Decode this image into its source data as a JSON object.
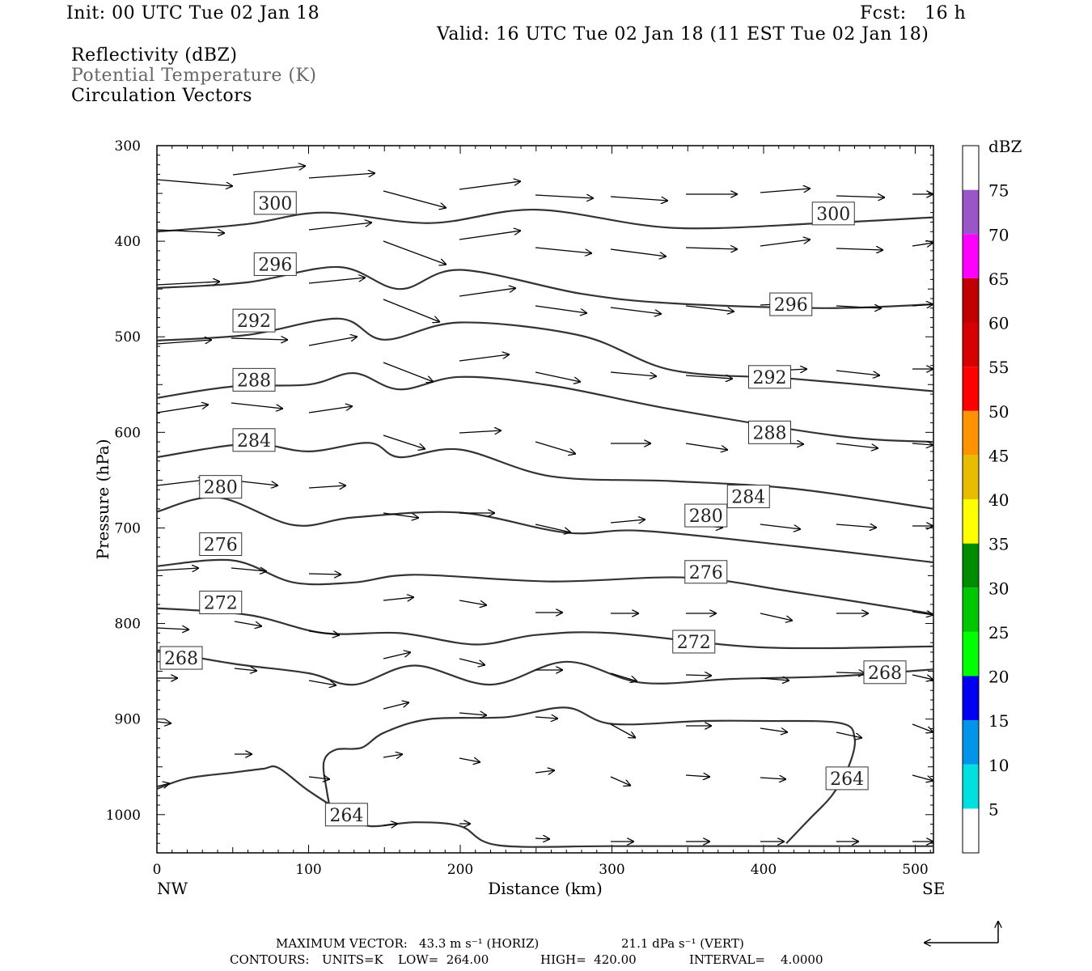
{
  "header": {
    "init": "Init: 00 UTC Tue 02 Jan 18",
    "fcst": "Fcst:   16 h",
    "valid": "Valid: 16 UTC Tue 02 Jan 18 (11 EST Tue 02 Jan 18)"
  },
  "fields": {
    "reflectivity": "Reflectivity (dBZ)",
    "theta": "Potential Temperature (K)",
    "vectors": "Circulation Vectors"
  },
  "footer": {
    "max_vector_label": "MAXIMUM VECTOR:",
    "max_vector_horiz": "43.3 m s⁻¹ (HORIZ)",
    "max_vector_vert": "21.1 dPa s⁻¹ (VERT)",
    "contours_label": "CONTOURS:",
    "units": "UNITS=K",
    "low": "LOW=  264.00",
    "high": "HIGH=  420.00",
    "interval": "INTERVAL=    4.0000"
  },
  "colorbar": {
    "title": "dBZ",
    "ticks": [
      "5",
      "10",
      "15",
      "20",
      "25",
      "30",
      "35",
      "40",
      "45",
      "50",
      "55",
      "60",
      "65",
      "70",
      "75"
    ],
    "colors": [
      "#ffffff",
      "#00e0e0",
      "#0095e8",
      "#0000f0",
      "#00ff00",
      "#00c800",
      "#008c00",
      "#ffff00",
      "#e6bd00",
      "#ff9200",
      "#ff0000",
      "#d60000",
      "#c00000",
      "#ff00ff",
      "#9a55c8",
      "#ffffff"
    ]
  },
  "chart_data": {
    "type": "contour",
    "xlabel": "Distance (km)",
    "ylabel": "Pressure (hPa)",
    "xlim": [
      0,
      512
    ],
    "ylim": [
      1040,
      300
    ],
    "x_ticks": [
      "0",
      "100",
      "200",
      "300",
      "400",
      "500"
    ],
    "y_ticks": [
      "300",
      "400",
      "500",
      "600",
      "700",
      "800",
      "900",
      "1000"
    ],
    "x_end_labels": {
      "left": "NW",
      "right": "SE"
    },
    "contour_interval_K": 4,
    "isentropes": [
      {
        "theta": 268,
        "labels": [
          [
            16,
            836
          ],
          [
            480,
            851
          ]
        ],
        "points": [
          [
            0,
            828
          ],
          [
            50,
            842
          ],
          [
            100,
            852
          ],
          [
            130,
            864
          ],
          [
            170,
            844
          ],
          [
            220,
            864
          ],
          [
            270,
            840
          ],
          [
            320,
            862
          ],
          [
            380,
            858
          ],
          [
            450,
            855
          ],
          [
            512,
            848
          ]
        ]
      },
      {
        "theta": 272,
        "labels": [
          [
            42,
            778
          ],
          [
            354,
            819
          ]
        ],
        "points": [
          [
            0,
            784
          ],
          [
            60,
            791
          ],
          [
            110,
            810
          ],
          [
            160,
            810
          ],
          [
            210,
            822
          ],
          [
            250,
            812
          ],
          [
            300,
            810
          ],
          [
            400,
            825
          ],
          [
            512,
            824
          ]
        ]
      },
      {
        "theta": 276,
        "labels": [
          [
            42,
            717
          ],
          [
            362,
            746
          ]
        ],
        "points": [
          [
            0,
            740
          ],
          [
            50,
            734
          ],
          [
            90,
            757
          ],
          [
            130,
            757
          ],
          [
            170,
            749
          ],
          [
            260,
            756
          ],
          [
            350,
            752
          ],
          [
            420,
            767
          ],
          [
            512,
            790
          ]
        ]
      },
      {
        "theta": 280,
        "labels": [
          [
            42,
            657
          ],
          [
            362,
            687
          ]
        ],
        "points": [
          [
            0,
            683
          ],
          [
            40,
            668
          ],
          [
            90,
            697
          ],
          [
            130,
            689
          ],
          [
            200,
            684
          ],
          [
            270,
            705
          ],
          [
            320,
            703
          ],
          [
            420,
            719
          ],
          [
            512,
            736
          ]
        ]
      },
      {
        "theta": 284,
        "labels": [
          [
            64,
            608
          ],
          [
            390,
            667
          ]
        ],
        "points": [
          [
            0,
            626
          ],
          [
            60,
            612
          ],
          [
            100,
            620
          ],
          [
            140,
            611
          ],
          [
            160,
            626
          ],
          [
            200,
            618
          ],
          [
            260,
            646
          ],
          [
            340,
            651
          ],
          [
            420,
            659
          ],
          [
            512,
            680
          ]
        ]
      },
      {
        "theta": 288,
        "labels": [
          [
            64,
            545
          ],
          [
            404,
            600
          ]
        ],
        "points": [
          [
            0,
            564
          ],
          [
            50,
            552
          ],
          [
            100,
            550
          ],
          [
            130,
            538
          ],
          [
            160,
            555
          ],
          [
            200,
            542
          ],
          [
            260,
            551
          ],
          [
            340,
            576
          ],
          [
            450,
            604
          ],
          [
            512,
            610
          ]
        ]
      },
      {
        "theta": 292,
        "labels": [
          [
            64,
            483
          ],
          [
            404,
            542
          ]
        ],
        "points": [
          [
            0,
            504
          ],
          [
            60,
            498
          ],
          [
            120,
            481
          ],
          [
            150,
            503
          ],
          [
            200,
            485
          ],
          [
            280,
            499
          ],
          [
            340,
            535
          ],
          [
            420,
            544
          ],
          [
            512,
            557
          ]
        ]
      },
      {
        "theta": 296,
        "labels": [
          [
            78,
            424
          ],
          [
            418,
            466
          ]
        ],
        "points": [
          [
            0,
            449
          ],
          [
            60,
            443
          ],
          [
            120,
            427
          ],
          [
            160,
            450
          ],
          [
            200,
            430
          ],
          [
            280,
            455
          ],
          [
            340,
            465
          ],
          [
            440,
            470
          ],
          [
            512,
            466
          ]
        ]
      },
      {
        "theta": 300,
        "labels": [
          [
            78,
            360
          ],
          [
            446,
            371
          ]
        ],
        "points": [
          [
            0,
            390
          ],
          [
            60,
            382
          ],
          [
            110,
            370
          ],
          [
            180,
            381
          ],
          [
            250,
            367
          ],
          [
            340,
            386
          ],
          [
            440,
            381
          ],
          [
            512,
            375
          ]
        ]
      }
    ],
    "isentrope_264": {
      "theta": 264,
      "labels": [
        [
          125,
          1000
        ],
        [
          455,
          962
        ]
      ]
    },
    "max_vector_horiz_ms": 43.3,
    "max_vector_vert_dPas": 21.1
  }
}
